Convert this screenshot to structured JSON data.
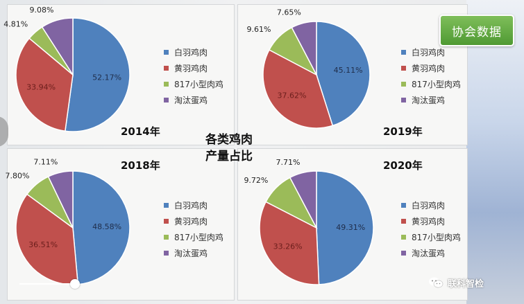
{
  "badge": {
    "label": "协会数据"
  },
  "center_title": {
    "line1": "各类鸡肉",
    "line2": "产量占比"
  },
  "watermark": {
    "text": "联科智检",
    "icon": "wechat-icon"
  },
  "colors": {
    "white_broiler": "#4f81bd",
    "yellow_broiler": "#c0504d",
    "small_817": "#9bbb59",
    "spent_hen": "#8064a2"
  },
  "player": {
    "progress": 0.12
  },
  "chart_data": [
    {
      "type": "pie",
      "title": "2014年",
      "categories": [
        "白羽鸡肉",
        "黄羽鸡肉",
        "817小型肉鸡",
        "淘汰蛋鸡"
      ],
      "values": [
        52.17,
        33.94,
        4.81,
        9.08
      ],
      "labels": [
        "52.17%",
        "33.94%",
        "4.81%",
        "9.08%"
      ],
      "legend": "right"
    },
    {
      "type": "pie",
      "title": "2019年",
      "categories": [
        "白羽鸡肉",
        "黄羽鸡肉",
        "817小型肉鸡",
        "淘汰蛋鸡"
      ],
      "values": [
        45.11,
        37.62,
        9.61,
        7.65
      ],
      "labels": [
        "45.11%",
        "37.62%",
        "9.61%",
        "7.65%"
      ],
      "legend": "right"
    },
    {
      "type": "pie",
      "title": "2018年",
      "categories": [
        "白羽鸡肉",
        "黄羽鸡肉",
        "817小型肉鸡",
        "淘汰蛋鸡"
      ],
      "values": [
        48.58,
        36.51,
        7.8,
        7.11
      ],
      "labels": [
        "48.58%",
        "36.51%",
        "7.80%",
        "7.11%"
      ],
      "legend": "right"
    },
    {
      "type": "pie",
      "title": "2020年",
      "categories": [
        "白羽鸡肉",
        "黄羽鸡肉",
        "817小型肉鸡",
        "淘汰蛋鸡"
      ],
      "values": [
        49.31,
        33.26,
        9.72,
        7.71
      ],
      "labels": [
        "49.31%",
        "33.26%",
        "9.72%",
        "7.71%"
      ],
      "legend": "right"
    }
  ]
}
